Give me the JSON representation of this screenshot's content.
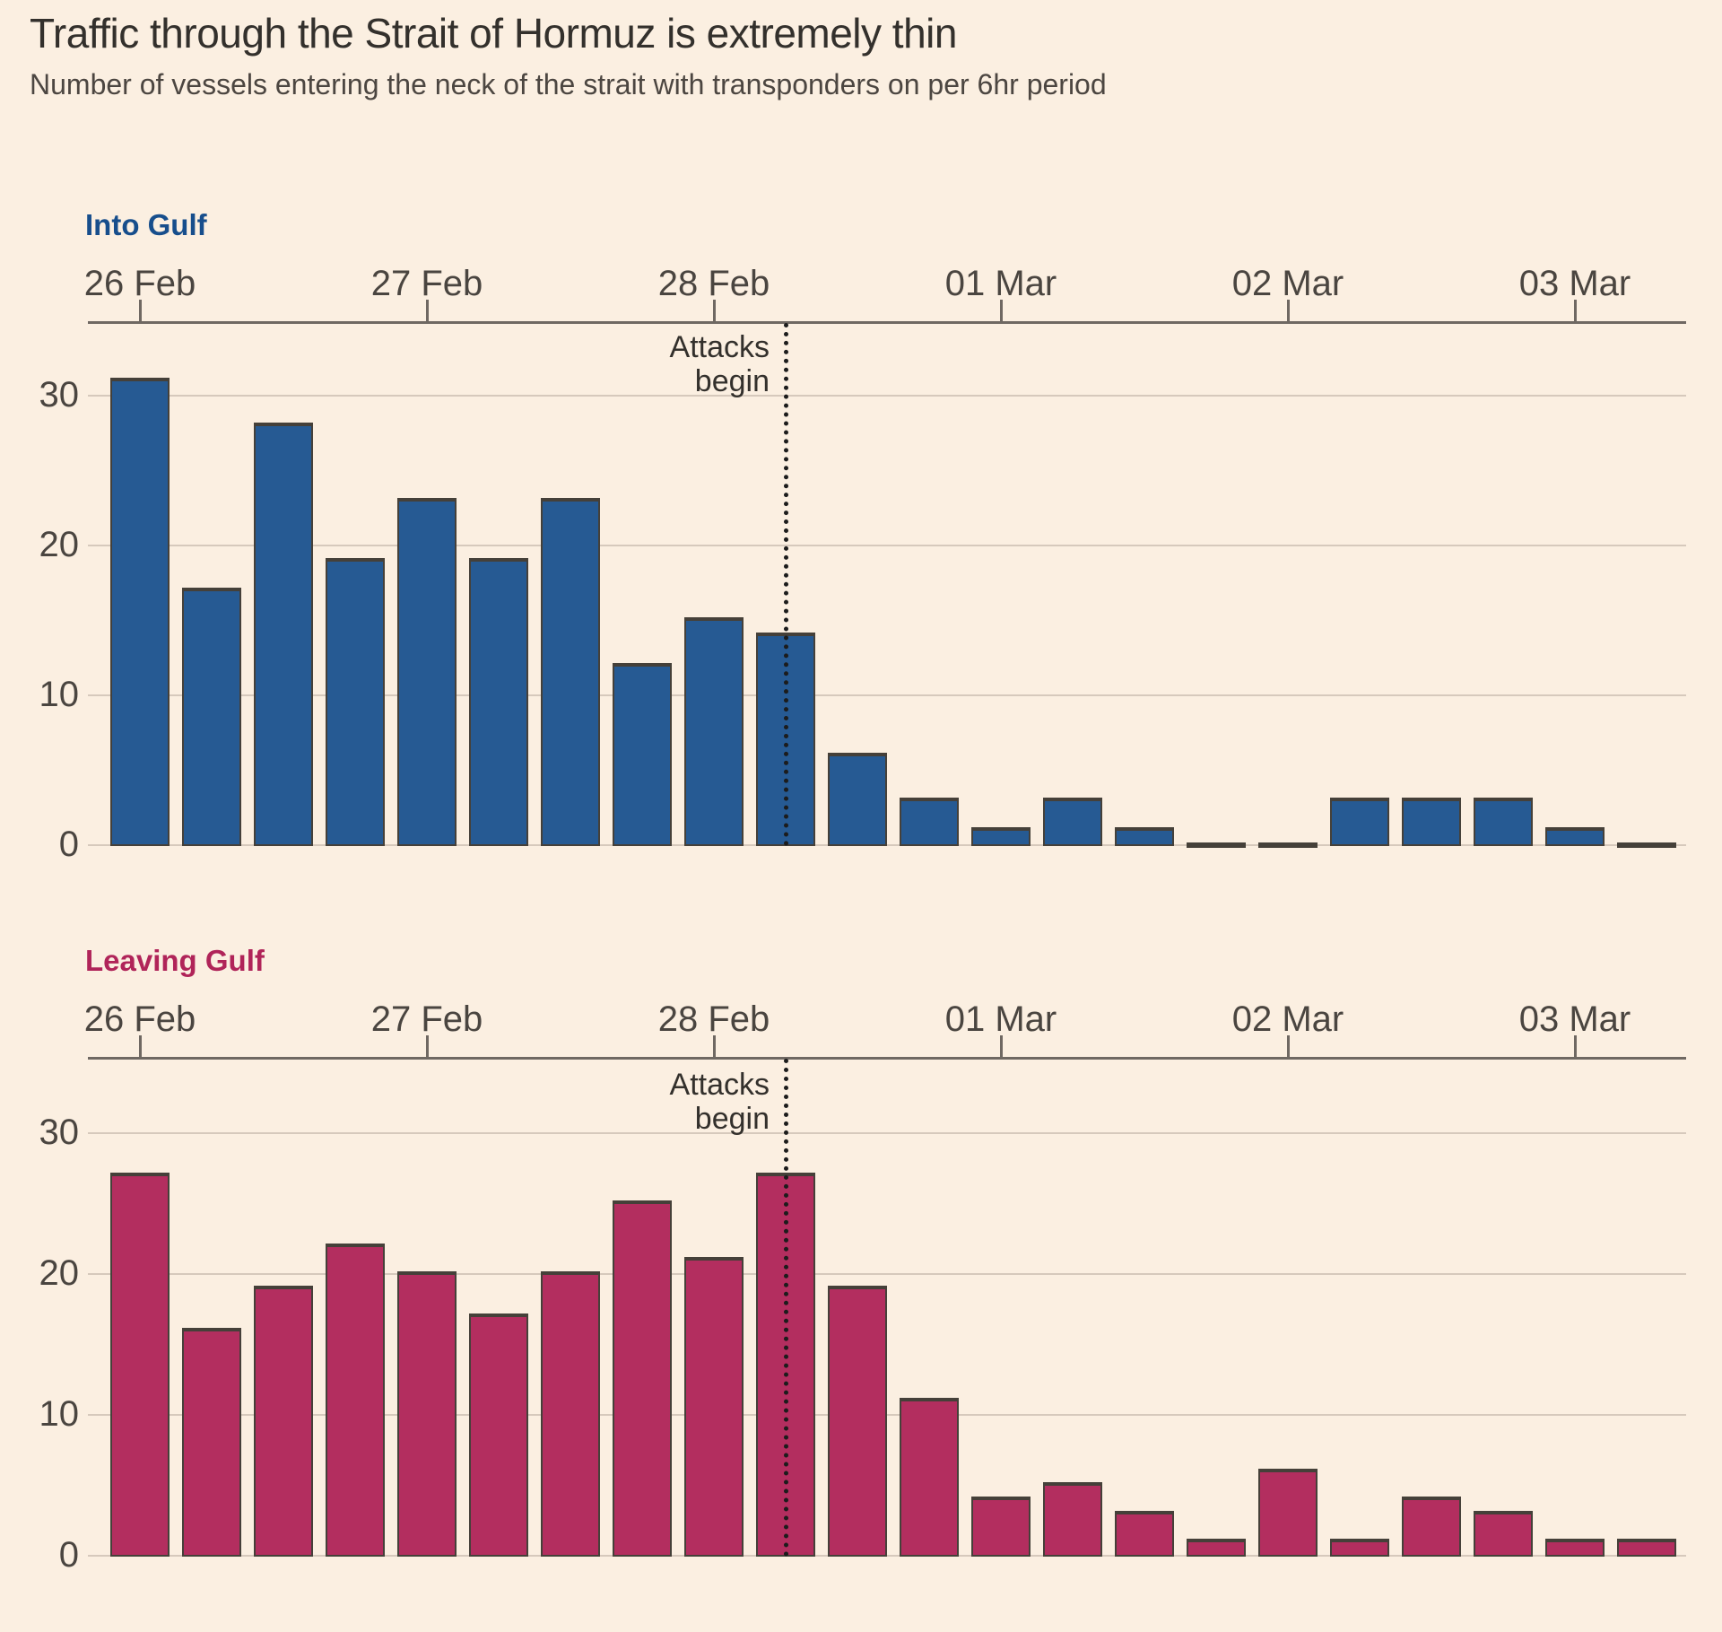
{
  "page": {
    "title": "Traffic through the Strait of Hormuz is extremely thin",
    "subtitle": "Number of vessels entering the neck of the strait with transponders on per 6hr period",
    "background_color": "#FBEFE1"
  },
  "colors": {
    "background": "#FBEFE1",
    "gridline": "#D6C9BC",
    "axis_line": "#6F6862",
    "tick_label": "#4A4540",
    "bar_border": "#454039",
    "annotation_line": "#1C1C1C",
    "annotation_text": "#33302C",
    "title_text": "#33302C",
    "subtitle_text": "#4C4641"
  },
  "chart_data": [
    {
      "type": "bar",
      "series_label": "Into Gulf",
      "series_color": "#265A93",
      "label_color": "#174E8C",
      "categories": [
        "26 Feb",
        "27 Feb",
        "28 Feb",
        "01 Mar",
        "02 Mar",
        "03 Mar"
      ],
      "bars_per_day": 4,
      "values": [
        31,
        17,
        28,
        19,
        23,
        19,
        23,
        12,
        15,
        14,
        6,
        3,
        1,
        3,
        1,
        0,
        0,
        3,
        3,
        3,
        1,
        0
      ],
      "xlabel": "",
      "ylabel": "",
      "yticks": [
        0,
        10,
        20,
        30
      ],
      "ylim": [
        0,
        35
      ],
      "grid": true,
      "annotation": {
        "line1": "Attacks",
        "line2": "begin",
        "at_bar_index": 9
      }
    },
    {
      "type": "bar",
      "series_label": "Leaving Gulf",
      "series_color": "#B32E5F",
      "label_color": "#B02459",
      "categories": [
        "26 Feb",
        "27 Feb",
        "28 Feb",
        "01 Mar",
        "02 Mar",
        "03 Mar"
      ],
      "bars_per_day": 4,
      "values": [
        27,
        16,
        19,
        22,
        20,
        17,
        20,
        25,
        21,
        27,
        19,
        11,
        4,
        5,
        3,
        1,
        6,
        1,
        4,
        3,
        1,
        1
      ],
      "xlabel": "",
      "ylabel": "",
      "yticks": [
        0,
        10,
        20,
        30
      ],
      "ylim": [
        0,
        35
      ],
      "grid": true,
      "annotation": {
        "line1": "Attacks",
        "line2": "begin",
        "at_bar_index": 9
      }
    }
  ]
}
